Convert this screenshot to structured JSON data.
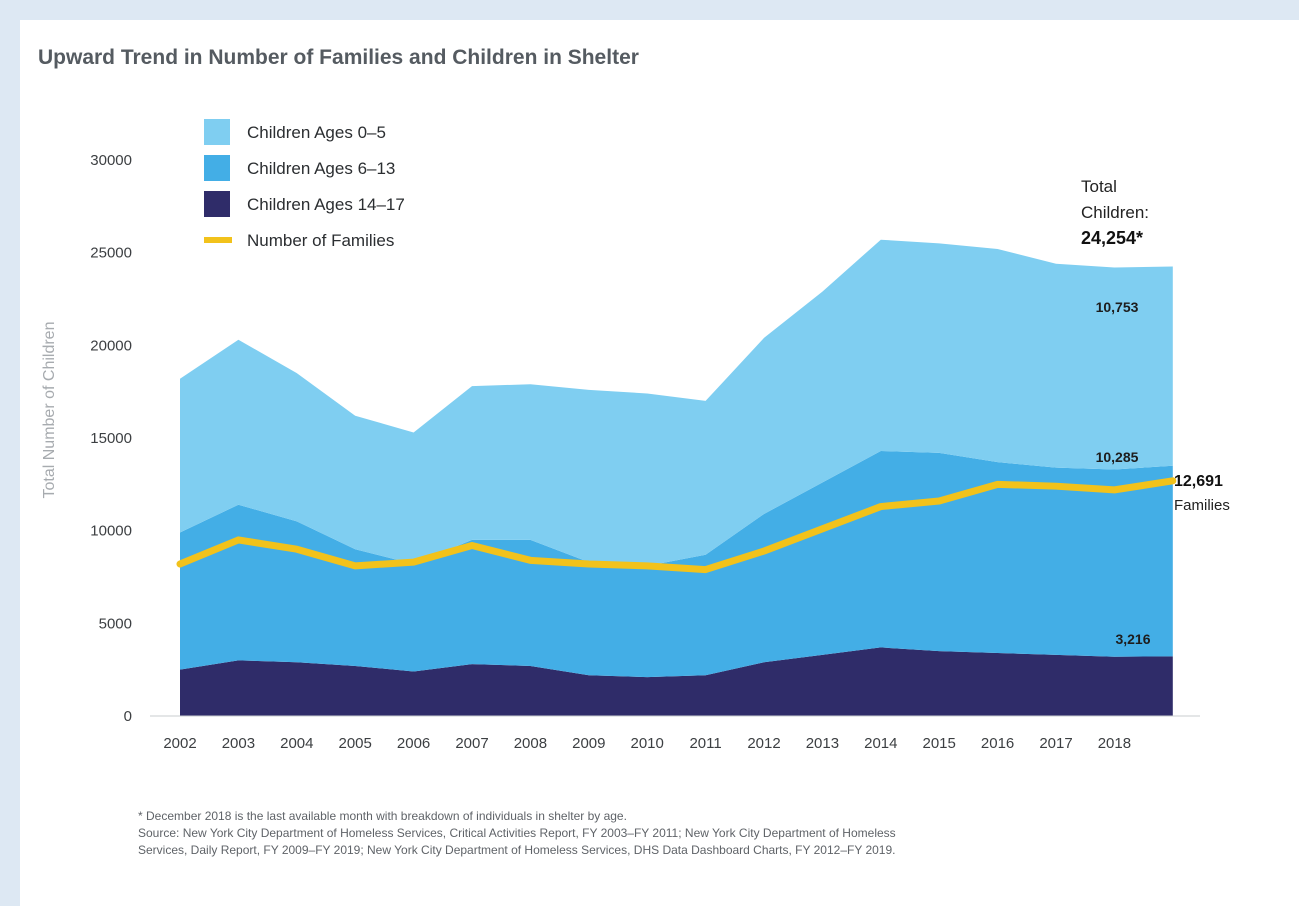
{
  "title": "Upward Trend in Number of Families and Children in Shelter",
  "footnote": {
    "note": "* December 2018 is the last available month with breakdown of individuals in shelter by age.",
    "source_1": "Source: New York City Department of Homeless Services, Critical Activities Report, FY 2003–FY 2011; New York City Department of Homeless",
    "source_2": "Services, Daily Report, FY 2009–FY 2019; New York City Department of Homeless Services, DHS Data Dashboard Charts, FY 2012–FY 2019."
  },
  "annotations": {
    "total_label_1": "Total",
    "total_label_2": "Children:",
    "total_value": "24,254*",
    "label_0_5": "10,753",
    "label_6_13": "10,285",
    "label_14_17": "3,216",
    "families_value": "12,691",
    "families_label": "Families"
  },
  "colors": {
    "ages_0_5": "#7fcef1",
    "ages_6_13": "#43aee6",
    "ages_14_17": "#2f2c69",
    "families": "#f2c21b"
  },
  "chart_data": {
    "type": "area",
    "title": "Upward Trend in Number of Families and Children in Shelter",
    "ylabel": "Total Number of Children",
    "xlabel": "",
    "ylim": [
      0,
      30000
    ],
    "yticks": [
      0,
      5000,
      10000,
      15000,
      20000,
      25000,
      30000
    ],
    "x": [
      2002,
      2003,
      2004,
      2005,
      2006,
      2007,
      2008,
      2009,
      2010,
      2011,
      2012,
      2013,
      2014,
      2015,
      2016,
      2017,
      2018,
      "Dec 2018"
    ],
    "x_tick_labels": [
      "2002",
      "2003",
      "2004",
      "2005",
      "2006",
      "2007",
      "2008",
      "2009",
      "2010",
      "2011",
      "2012",
      "2013",
      "2014",
      "2015",
      "2016",
      "2017",
      "2018"
    ],
    "stacked": true,
    "legend_position": "top-left",
    "series": [
      {
        "name": "Children Ages 14–17",
        "kind": "area",
        "color": "#2f2c69",
        "values": [
          2500,
          3000,
          2900,
          2700,
          2400,
          2800,
          2700,
          2200,
          2100,
          2200,
          2900,
          3300,
          3700,
          3500,
          3400,
          3300,
          3200,
          3216
        ]
      },
      {
        "name": "Children Ages 6–13",
        "kind": "area",
        "color": "#43aee6",
        "values": [
          7400,
          8400,
          7600,
          6300,
          5800,
          6700,
          6800,
          6100,
          6000,
          6500,
          8000,
          9300,
          10600,
          10700,
          10300,
          10100,
          10100,
          10285
        ]
      },
      {
        "name": "Children Ages 0–5",
        "kind": "area",
        "color": "#7fcef1",
        "values": [
          8300,
          8900,
          8000,
          7200,
          7100,
          8300,
          8400,
          9300,
          9300,
          8300,
          9500,
          10300,
          11400,
          11300,
          11500,
          11000,
          10900,
          10753
        ]
      },
      {
        "name": "Number of Families",
        "kind": "line",
        "color": "#f2c21b",
        "values": [
          8200,
          9500,
          9000,
          8100,
          8300,
          9200,
          8400,
          8200,
          8100,
          7900,
          8900,
          10100,
          11300,
          11600,
          12500,
          12400,
          12200,
          12691
        ]
      }
    ],
    "legend": [
      "Children Ages 0–5",
      "Children Ages 6–13",
      "Children Ages 14–17",
      "Number of Families"
    ],
    "totals_note": "Total Children: 24,254*"
  }
}
